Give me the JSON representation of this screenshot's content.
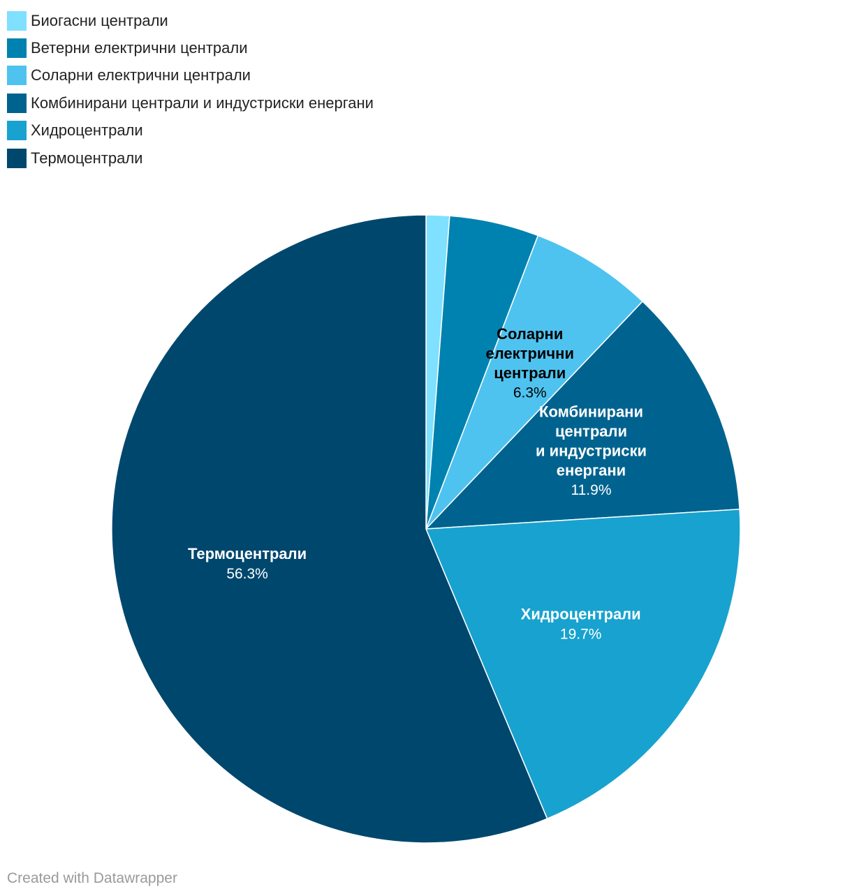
{
  "chart_data": {
    "type": "pie",
    "title": "",
    "legend_position": "top-left",
    "series": [
      {
        "name": "Биогасни централи",
        "value": 1.2,
        "color": "#7fe0ff",
        "label_lines": [],
        "value_label": ""
      },
      {
        "name": "Ветерни електрични централи",
        "value": 4.6,
        "color": "#0082b0",
        "label_lines": [],
        "value_label": ""
      },
      {
        "name": "Соларни електрични централи",
        "value": 6.3,
        "color": "#4fc3ef",
        "label_lines": [
          "Соларни",
          "електрични",
          "централи"
        ],
        "value_label": "6.3%",
        "label_color": "#000000"
      },
      {
        "name": "Комбинирани централи и индустриски енергани",
        "value": 11.9,
        "color": "#00638f",
        "label_lines": [
          "Комбинирани",
          "централи",
          "и индустриски",
          "енергани"
        ],
        "value_label": "11.9%",
        "label_color": "#ffffff"
      },
      {
        "name": "Хидроцентрали",
        "value": 19.7,
        "color": "#18a2cf",
        "label_lines": [
          "Хидроцентрали"
        ],
        "value_label": "19.7%",
        "label_color": "#ffffff"
      },
      {
        "name": "Термоцентрали",
        "value": 56.3,
        "color": "#00476e",
        "label_lines": [
          "Термоцентрали"
        ],
        "value_label": "56.3%",
        "label_color": "#ffffff"
      }
    ]
  },
  "footer": {
    "credit": "Created with Datawrapper"
  }
}
